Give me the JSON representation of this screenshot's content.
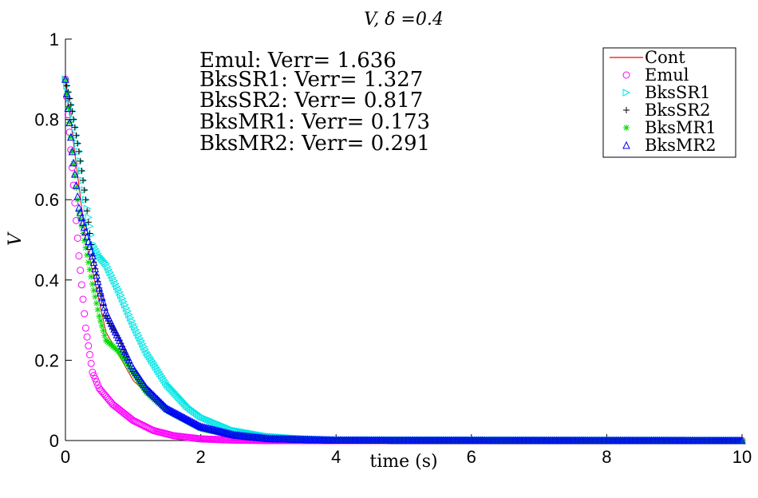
{
  "chart_data": {
    "type": "scatter",
    "title": "V, δ =0.4",
    "xlabel": "time (s)",
    "ylabel": "V",
    "xlim": [
      0,
      10
    ],
    "ylim": [
      0,
      1
    ],
    "xticks": [
      "0",
      "2",
      "4",
      "6",
      "8",
      "10"
    ],
    "yticks": [
      "0",
      "0.2",
      "0.4",
      "0.6",
      "0.8",
      "1"
    ],
    "grid": false,
    "legend_position": "top-right",
    "annotations": [
      "Emul: Verr= 1.636",
      "BksSR1: Verr= 1.327",
      "BksSR2: Verr= 0.817",
      "BksMR1: Verr= 0.173",
      "BksMR2: Verr= 0.291"
    ],
    "series": [
      {
        "name": "Cont",
        "color": "#ff0000",
        "marker": "line",
        "x": [
          0,
          0.3,
          0.6,
          1,
          1.5,
          2,
          3,
          4,
          6,
          10
        ],
        "y": [
          0.9,
          0.5,
          0.27,
          0.15,
          0.07,
          0.03,
          0.008,
          0.002,
          0,
          0
        ]
      },
      {
        "name": "Emul",
        "color": "#ff00ff",
        "marker": "circle",
        "x": [
          0,
          0.1,
          0.2,
          0.3,
          0.4,
          0.5,
          0.7,
          1.0,
          1.3,
          1.6,
          2.0,
          2.5,
          3.0,
          4.0,
          10
        ],
        "y": [
          0.9,
          0.68,
          0.46,
          0.28,
          0.17,
          0.13,
          0.09,
          0.05,
          0.025,
          0.012,
          0.004,
          0.001,
          0,
          0,
          0
        ]
      },
      {
        "name": "BksSR1",
        "color": "#00e5e5",
        "marker": "triangle-right",
        "x": [
          0,
          0.1,
          0.2,
          0.3,
          0.4,
          0.5,
          0.6,
          0.8,
          1.0,
          1.2,
          1.5,
          1.8,
          2.0,
          2.5,
          3.0,
          3.5,
          4.0,
          10
        ],
        "y": [
          0.9,
          0.82,
          0.72,
          0.6,
          0.49,
          0.46,
          0.44,
          0.37,
          0.29,
          0.22,
          0.14,
          0.085,
          0.06,
          0.025,
          0.01,
          0.004,
          0.001,
          0
        ]
      },
      {
        "name": "BksSR2",
        "color": "#000000",
        "marker": "plus",
        "x": [
          0,
          0.1,
          0.2,
          0.3,
          0.4,
          0.5,
          0.6,
          0.8,
          1.0,
          1.2,
          1.5,
          2.0,
          2.5,
          3.0,
          4.0,
          10
        ],
        "y": [
          0.9,
          0.82,
          0.72,
          0.6,
          0.46,
          0.38,
          0.31,
          0.25,
          0.17,
          0.12,
          0.075,
          0.03,
          0.012,
          0.004,
          0,
          0
        ]
      },
      {
        "name": "BksMR1",
        "color": "#00dd00",
        "marker": "asterisk",
        "x": [
          0,
          0.1,
          0.2,
          0.3,
          0.4,
          0.5,
          0.6,
          0.8,
          1.0,
          1.2,
          1.5,
          2.0,
          2.5,
          3.0,
          4.0,
          10
        ],
        "y": [
          0.9,
          0.72,
          0.57,
          0.48,
          0.39,
          0.31,
          0.25,
          0.22,
          0.17,
          0.12,
          0.075,
          0.03,
          0.012,
          0.004,
          0,
          0
        ]
      },
      {
        "name": "BksMR2",
        "color": "#0000ff",
        "marker": "triangle-up",
        "x": [
          0,
          0.1,
          0.2,
          0.3,
          0.4,
          0.5,
          0.6,
          0.8,
          1.0,
          1.2,
          1.5,
          2.0,
          2.5,
          3.0,
          4.0,
          10
        ],
        "y": [
          0.9,
          0.72,
          0.58,
          0.52,
          0.46,
          0.38,
          0.32,
          0.25,
          0.18,
          0.13,
          0.08,
          0.035,
          0.014,
          0.005,
          0.001,
          0
        ]
      }
    ]
  }
}
